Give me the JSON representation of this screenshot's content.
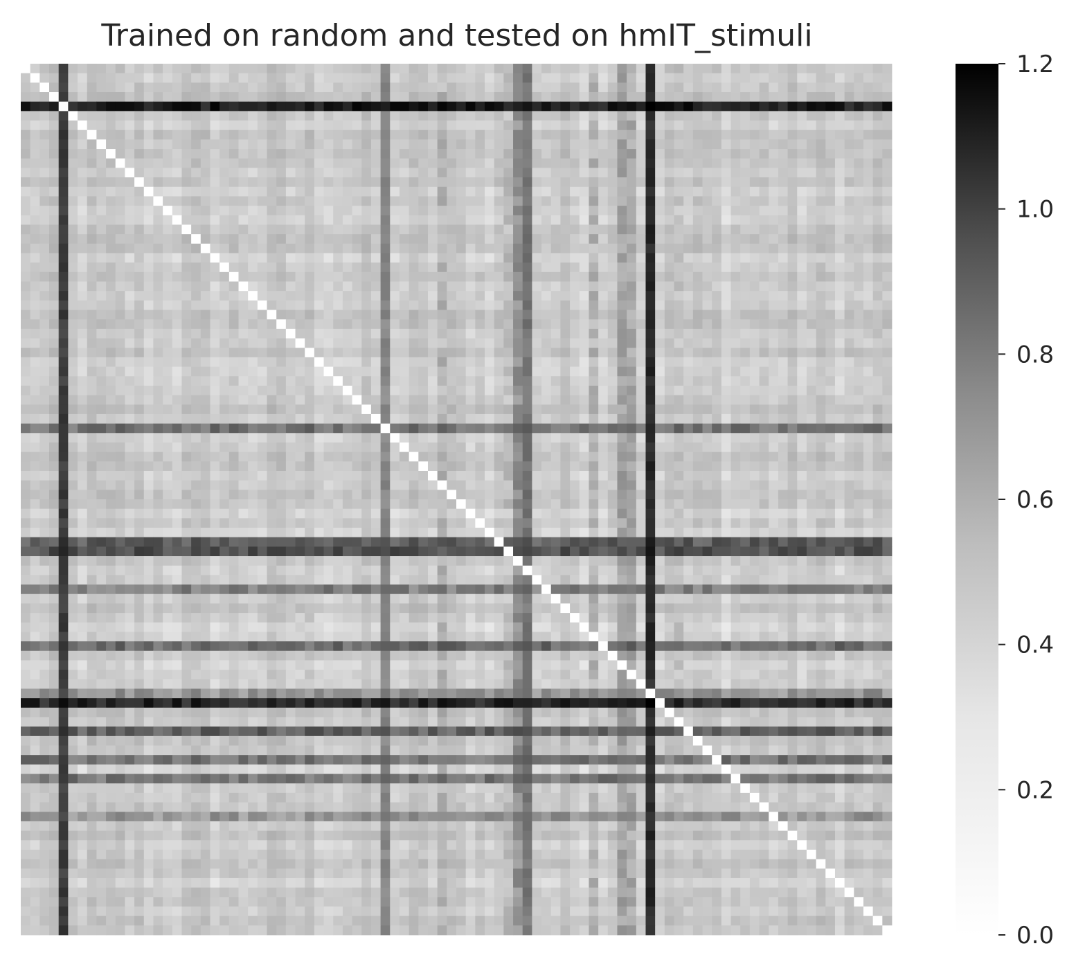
{
  "chart_data": {
    "type": "heatmap",
    "title": "Trained on random and tested on hmIT_stimuli",
    "xlabel": "",
    "ylabel": "",
    "n": 92,
    "colormap": "Greys",
    "vmin": 0.0,
    "vmax": 1.2,
    "diagonal_value": 0.0,
    "x_ticks_shown": false,
    "y_ticks_shown": false,
    "colorbar": {
      "ticks": [
        0.0,
        0.2,
        0.4,
        0.6,
        0.8,
        1.0,
        1.2
      ],
      "tick_labels": [
        "0.0",
        "0.2",
        "0.4",
        "0.6",
        "0.8",
        "1.0",
        "1.2"
      ]
    },
    "row_strength": [
      0.12,
      0.12,
      0.12,
      0.12,
      0.12,
      0.12,
      0.12,
      0.12,
      0.12,
      0.12,
      0.12,
      0.12,
      0.12,
      0.12,
      0.12,
      0.12,
      0.12,
      0.12,
      0.12,
      0.12,
      0.12,
      0.12,
      0.12,
      0.12,
      0.12,
      0.12,
      0.12,
      0.12,
      0.12,
      0.12,
      0.12,
      0.12,
      0.12,
      0.12,
      0.12,
      0.12,
      0.12,
      0.12,
      0.12,
      0.12,
      0.12,
      0.12,
      0.12,
      0.12,
      0.12,
      0.12,
      0.12,
      0.12,
      0.12,
      0.12,
      0.12,
      0.12,
      0.12,
      0.12,
      0.12,
      0.12,
      0.12,
      0.12,
      0.12,
      0.12,
      0.12,
      0.12,
      0.12,
      0.12,
      0.12,
      0.12,
      0.12,
      0.12,
      0.12,
      0.12,
      0.12,
      0.12,
      0.12,
      0.12,
      0.12,
      0.12,
      0.12,
      0.12,
      0.12,
      0.12,
      0.12,
      0.12,
      0.12,
      0.12,
      0.12,
      0.12,
      0.12,
      0.12,
      0.12,
      0.12,
      0.12,
      0.12
    ],
    "strong_indices": {
      "4": 1.05,
      "38": 0.62,
      "50": 0.72,
      "51": 0.78,
      "55": 0.55,
      "61": 0.65,
      "66": 0.45,
      "67": 1.0,
      "70": 0.7,
      "73": 0.6,
      "75": 0.6,
      "79": 0.45
    },
    "column_boost": {
      "4": 0.9,
      "38": 0.55,
      "44": 0.35,
      "51": 0.3,
      "52": 0.55,
      "53": 0.62,
      "60": 0.35,
      "63": 0.45,
      "64": 0.42,
      "66": 1.05,
      "69": 0.25
    },
    "dark_columns_base": {
      "4": 0.88,
      "38": 0.5,
      "53": 0.6,
      "66": 0.98
    }
  }
}
